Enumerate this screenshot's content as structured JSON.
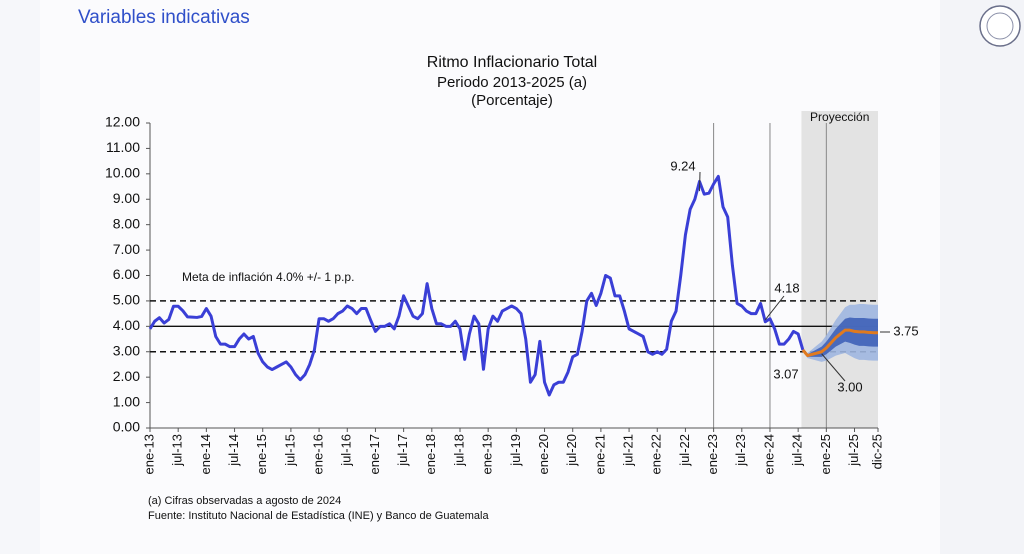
{
  "header": {
    "title": "Variables indicativas"
  },
  "chart_data": {
    "type": "line",
    "title": "Ritmo Inflacionario Total",
    "subtitle": "Periodo 2013-2025 (a)",
    "unit_note": "(Porcentaje)",
    "projection_label": "Proyección",
    "annotations": [
      "Meta de inflación 4.0% +/- 1 p.p.",
      "9.24",
      "4.18",
      "3.07",
      "3.00",
      "3.75"
    ],
    "footnotes": [
      "(a) Cifras observadas a agosto de 2024",
      "Fuente: Instituto Nacional de Estadística (INE) y Banco de Guatemala"
    ],
    "categories": [
      "ene-13",
      null,
      null,
      null,
      null,
      null,
      "jul-13",
      null,
      null,
      null,
      null,
      null,
      "ene-14",
      null,
      null,
      null,
      null,
      null,
      "jul-14",
      null,
      null,
      null,
      null,
      null,
      "ene-15",
      null,
      null,
      null,
      null,
      null,
      "jul-15",
      null,
      null,
      null,
      null,
      null,
      "ene-16",
      null,
      null,
      null,
      null,
      null,
      "jul-16",
      null,
      null,
      null,
      null,
      null,
      "ene-17",
      null,
      null,
      null,
      null,
      null,
      "jul-17",
      null,
      null,
      null,
      null,
      null,
      "ene-18",
      null,
      null,
      null,
      null,
      null,
      "jul-18",
      null,
      null,
      null,
      null,
      null,
      "ene-19",
      null,
      null,
      null,
      null,
      null,
      "jul-19",
      null,
      null,
      null,
      null,
      null,
      "ene-20",
      null,
      null,
      null,
      null,
      null,
      "jul-20",
      null,
      null,
      null,
      null,
      null,
      "ene-21",
      null,
      null,
      null,
      null,
      null,
      "jul-21",
      null,
      null,
      null,
      null,
      null,
      "ene-22",
      null,
      null,
      null,
      null,
      null,
      "jul-22",
      null,
      null,
      null,
      null,
      null,
      "ene-23",
      null,
      null,
      null,
      null,
      null,
      "jul-23",
      null,
      null,
      null,
      null,
      null,
      "ene-24",
      null,
      null,
      null,
      null,
      null,
      "jul-24",
      null,
      null,
      null,
      null,
      null,
      "ene-25",
      null,
      null,
      null,
      null,
      null,
      "jul-25",
      null,
      null,
      null,
      null,
      "dic-25"
    ],
    "series": [
      {
        "color": "#3a3fd6",
        "values": [
          3.9,
          4.2,
          4.34,
          4.13,
          4.27,
          4.79,
          4.79,
          4.61,
          4.37,
          4.36,
          4.35,
          4.39,
          4.7,
          4.4,
          3.6,
          3.3,
          3.3,
          3.2,
          3.2,
          3.5,
          3.7,
          3.5,
          3.6,
          2.95,
          2.6,
          2.4,
          2.3,
          2.4,
          2.5,
          2.6,
          2.4,
          2.1,
          1.9,
          2.1,
          2.5,
          3.07,
          4.3,
          4.3,
          4.2,
          4.3,
          4.5,
          4.6,
          4.8,
          4.7,
          4.5,
          4.7,
          4.7,
          4.23,
          3.8,
          4.0,
          4.0,
          4.1,
          3.9,
          4.4,
          5.2,
          4.8,
          4.4,
          4.3,
          4.5,
          5.68,
          4.7,
          4.1,
          4.1,
          4.0,
          4.0,
          4.2,
          3.9,
          2.7,
          3.7,
          4.4,
          4.1,
          2.31,
          3.9,
          4.4,
          4.2,
          4.6,
          4.7,
          4.8,
          4.7,
          4.5,
          3.5,
          1.8,
          2.1,
          3.41,
          1.8,
          1.3,
          1.7,
          1.8,
          1.8,
          2.2,
          2.8,
          2.9,
          3.8,
          5.0,
          5.3,
          4.82,
          5.3,
          6.0,
          5.9,
          5.2,
          5.2,
          4.6,
          3.9,
          3.8,
          3.7,
          3.6,
          3.0,
          2.9,
          3.0,
          2.9,
          3.1,
          4.2,
          4.6,
          6.0,
          7.6,
          8.6,
          9.0,
          9.7,
          9.2,
          9.24,
          9.6,
          9.9,
          8.7,
          8.3,
          6.4,
          4.9,
          4.8,
          4.6,
          4.5,
          4.5,
          4.9,
          4.18,
          4.3,
          3.9,
          3.3,
          3.3,
          3.5,
          3.8,
          3.7,
          3.07,
          null,
          null,
          null,
          null,
          null,
          null,
          null,
          null,
          null,
          null,
          null,
          null,
          null,
          null,
          null,
          null
        ]
      },
      {
        "color": "#e07a1f",
        "values": [
          null,
          null,
          null,
          null,
          null,
          null,
          null,
          null,
          null,
          null,
          null,
          null,
          null,
          null,
          null,
          null,
          null,
          null,
          null,
          null,
          null,
          null,
          null,
          null,
          null,
          null,
          null,
          null,
          null,
          null,
          null,
          null,
          null,
          null,
          null,
          null,
          null,
          null,
          null,
          null,
          null,
          null,
          null,
          null,
          null,
          null,
          null,
          null,
          null,
          null,
          null,
          null,
          null,
          null,
          null,
          null,
          null,
          null,
          null,
          null,
          null,
          null,
          null,
          null,
          null,
          null,
          null,
          null,
          null,
          null,
          null,
          null,
          null,
          null,
          null,
          null,
          null,
          null,
          null,
          null,
          null,
          null,
          null,
          null,
          null,
          null,
          null,
          null,
          null,
          null,
          null,
          null,
          null,
          null,
          null,
          null,
          null,
          null,
          null,
          null,
          null,
          null,
          null,
          null,
          null,
          null,
          null,
          null,
          null,
          null,
          null,
          null,
          null,
          null,
          null,
          null,
          null,
          null,
          null,
          null,
          null,
          null,
          null,
          null,
          null,
          null,
          null,
          null,
          null,
          null,
          null,
          null,
          null,
          null,
          null,
          null,
          null,
          null,
          null,
          3.07,
          2.85,
          2.9,
          2.95,
          3.0,
          3.15,
          3.35,
          3.55,
          3.7,
          3.85,
          3.85,
          3.8,
          3.78,
          3.78,
          3.76,
          3.75,
          3.75
        ]
      }
    ],
    "bands": [
      {
        "color": "#9fb6e0",
        "lower": [
          null,
          null,
          null,
          null,
          null,
          null,
          null,
          null,
          null,
          null,
          null,
          null,
          null,
          null,
          null,
          null,
          null,
          null,
          null,
          null,
          null,
          null,
          null,
          null,
          null,
          null,
          null,
          null,
          null,
          null,
          null,
          null,
          null,
          null,
          null,
          null,
          null,
          null,
          null,
          null,
          null,
          null,
          null,
          null,
          null,
          null,
          null,
          null,
          null,
          null,
          null,
          null,
          null,
          null,
          null,
          null,
          null,
          null,
          null,
          null,
          null,
          null,
          null,
          null,
          null,
          null,
          null,
          null,
          null,
          null,
          null,
          null,
          null,
          null,
          null,
          null,
          null,
          null,
          null,
          null,
          null,
          null,
          null,
          null,
          null,
          null,
          null,
          null,
          null,
          null,
          null,
          null,
          null,
          null,
          null,
          null,
          null,
          null,
          null,
          null,
          null,
          null,
          null,
          null,
          null,
          null,
          null,
          null,
          null,
          null,
          null,
          null,
          null,
          null,
          null,
          null,
          null,
          null,
          null,
          null,
          null,
          null,
          null,
          null,
          null,
          null,
          null,
          null,
          null,
          null,
          null,
          null,
          null,
          null,
          null,
          null,
          null,
          null,
          null,
          3.07,
          2.75,
          2.7,
          2.65,
          2.6,
          2.65,
          2.75,
          2.85,
          2.9,
          2.95,
          2.85,
          2.75,
          2.68,
          2.68,
          2.66,
          2.65,
          2.65
        ],
        "upper": [
          null,
          null,
          null,
          null,
          null,
          null,
          null,
          null,
          null,
          null,
          null,
          null,
          null,
          null,
          null,
          null,
          null,
          null,
          null,
          null,
          null,
          null,
          null,
          null,
          null,
          null,
          null,
          null,
          null,
          null,
          null,
          null,
          null,
          null,
          null,
          null,
          null,
          null,
          null,
          null,
          null,
          null,
          null,
          null,
          null,
          null,
          null,
          null,
          null,
          null,
          null,
          null,
          null,
          null,
          null,
          null,
          null,
          null,
          null,
          null,
          null,
          null,
          null,
          null,
          null,
          null,
          null,
          null,
          null,
          null,
          null,
          null,
          null,
          null,
          null,
          null,
          null,
          null,
          null,
          null,
          null,
          null,
          null,
          null,
          null,
          null,
          null,
          null,
          null,
          null,
          null,
          null,
          null,
          null,
          null,
          null,
          null,
          null,
          null,
          null,
          null,
          null,
          null,
          null,
          null,
          null,
          null,
          null,
          null,
          null,
          null,
          null,
          null,
          null,
          null,
          null,
          null,
          null,
          null,
          null,
          null,
          null,
          null,
          null,
          null,
          null,
          null,
          null,
          null,
          null,
          null,
          null,
          null,
          null,
          null,
          null,
          null,
          null,
          null,
          3.07,
          2.95,
          3.1,
          3.25,
          3.4,
          3.65,
          3.95,
          4.25,
          4.5,
          4.75,
          4.85,
          4.85,
          4.88,
          4.88,
          4.86,
          4.85,
          4.85
        ]
      },
      {
        "color": "#3f62b8",
        "lower": [
          null,
          null,
          null,
          null,
          null,
          null,
          null,
          null,
          null,
          null,
          null,
          null,
          null,
          null,
          null,
          null,
          null,
          null,
          null,
          null,
          null,
          null,
          null,
          null,
          null,
          null,
          null,
          null,
          null,
          null,
          null,
          null,
          null,
          null,
          null,
          null,
          null,
          null,
          null,
          null,
          null,
          null,
          null,
          null,
          null,
          null,
          null,
          null,
          null,
          null,
          null,
          null,
          null,
          null,
          null,
          null,
          null,
          null,
          null,
          null,
          null,
          null,
          null,
          null,
          null,
          null,
          null,
          null,
          null,
          null,
          null,
          null,
          null,
          null,
          null,
          null,
          null,
          null,
          null,
          null,
          null,
          null,
          null,
          null,
          null,
          null,
          null,
          null,
          null,
          null,
          null,
          null,
          null,
          null,
          null,
          null,
          null,
          null,
          null,
          null,
          null,
          null,
          null,
          null,
          null,
          null,
          null,
          null,
          null,
          null,
          null,
          null,
          null,
          null,
          null,
          null,
          null,
          null,
          null,
          null,
          null,
          null,
          null,
          null,
          null,
          null,
          null,
          null,
          null,
          null,
          null,
          null,
          null,
          null,
          null,
          null,
          null,
          null,
          null,
          3.07,
          2.8,
          2.8,
          2.8,
          2.8,
          2.9,
          3.05,
          3.2,
          3.3,
          3.4,
          3.35,
          3.28,
          3.23,
          3.23,
          3.21,
          3.2,
          3.2
        ],
        "upper": [
          null,
          null,
          null,
          null,
          null,
          null,
          null,
          null,
          null,
          null,
          null,
          null,
          null,
          null,
          null,
          null,
          null,
          null,
          null,
          null,
          null,
          null,
          null,
          null,
          null,
          null,
          null,
          null,
          null,
          null,
          null,
          null,
          null,
          null,
          null,
          null,
          null,
          null,
          null,
          null,
          null,
          null,
          null,
          null,
          null,
          null,
          null,
          null,
          null,
          null,
          null,
          null,
          null,
          null,
          null,
          null,
          null,
          null,
          null,
          null,
          null,
          null,
          null,
          null,
          null,
          null,
          null,
          null,
          null,
          null,
          null,
          null,
          null,
          null,
          null,
          null,
          null,
          null,
          null,
          null,
          null,
          null,
          null,
          null,
          null,
          null,
          null,
          null,
          null,
          null,
          null,
          null,
          null,
          null,
          null,
          null,
          null,
          null,
          null,
          null,
          null,
          null,
          null,
          null,
          null,
          null,
          null,
          null,
          null,
          null,
          null,
          null,
          null,
          null,
          null,
          null,
          null,
          null,
          null,
          null,
          null,
          null,
          null,
          null,
          null,
          null,
          null,
          null,
          null,
          null,
          null,
          null,
          null,
          null,
          null,
          null,
          null,
          null,
          null,
          3.07,
          2.9,
          3.0,
          3.1,
          3.2,
          3.4,
          3.65,
          3.9,
          4.1,
          4.3,
          4.35,
          4.33,
          4.33,
          4.33,
          4.31,
          4.3,
          4.3
        ]
      }
    ],
    "reference_lines": [
      {
        "value": 5,
        "style": "dashed"
      },
      {
        "value": 4,
        "style": "solid"
      },
      {
        "value": 3,
        "style": "dashed"
      }
    ],
    "vlines": [
      "ene-23",
      "ene-24",
      "ene-25"
    ],
    "shaded_from": "jul-24",
    "shade_color": "#e3e3e3",
    "ylim": [
      0,
      12
    ],
    "yticks": [
      {
        "value": 0,
        "label": "0.00"
      },
      {
        "value": 1,
        "label": "1.00"
      },
      {
        "value": 2,
        "label": "2.00"
      },
      {
        "value": 3,
        "label": "3.00"
      },
      {
        "value": 4,
        "label": "4.00"
      },
      {
        "value": 5,
        "label": "5.00"
      },
      {
        "value": 6,
        "label": "6.00"
      },
      {
        "value": 7,
        "label": "7.00"
      },
      {
        "value": 8,
        "label": "8.00"
      },
      {
        "value": 9,
        "label": "9.00"
      },
      {
        "value": 10,
        "label": "10.00"
      },
      {
        "value": 11,
        "label": "11.00"
      },
      {
        "value": 12,
        "label": "12.00"
      }
    ]
  }
}
